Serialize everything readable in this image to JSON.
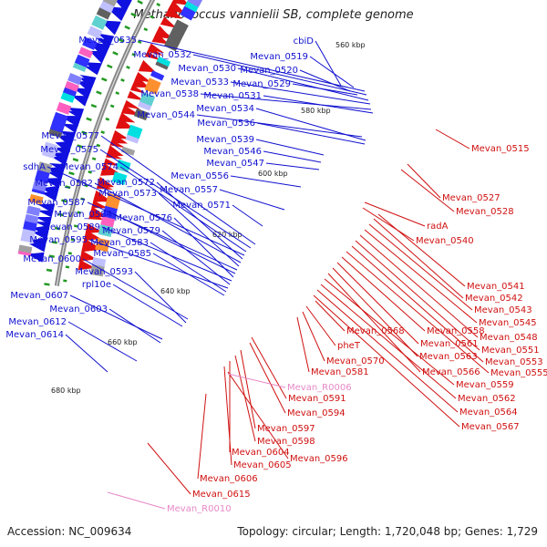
{
  "title": "Methanococcus vannielii SB, complete genome",
  "accession_text": "Accession: NC_009634",
  "topology_text": "Topology: circular; Length: 1,720,048 bp; Genes: 1,729",
  "colors": {
    "left_label": "#1010d0",
    "right_label": "#d01010",
    "rna_label": "#e888c8",
    "tick": "#229922",
    "backbone": "#888888"
  },
  "ticks": [
    "560 kbp",
    "580 kbp",
    "600 kbp",
    "620 kbp",
    "640 kbp",
    "660 kbp",
    "680 kbp"
  ],
  "left_labels": [
    "Mevan_0535",
    "Mevan_0532",
    "Mevan_0530",
    "Mevan_0533",
    "Mevan_0538",
    "Mevan_0531",
    "Mevan_0544",
    "Mevan_0534",
    "Mevan_0536",
    "Mevan_0539",
    "Mevan_0546",
    "Mevan_0547",
    "Mevan_0556",
    "Mevan_0557",
    "Mevan_0571",
    "Mevan_0577",
    "Mevan_0575",
    "Mevan_0574",
    "sdhA",
    "Mevan_0572",
    "Mevan_0582",
    "Mevan_0573",
    "Mevan_0587",
    "Mevan_0584",
    "Mevan_0576",
    "Mevan_0589",
    "Mevan_0579",
    "Mevan_0595",
    "Mevan_0583",
    "Mevan_0585",
    "Mevan_0600",
    "Mevan_0593",
    "rpl10e",
    "Mevan_0607",
    "Mevan_0603",
    "Mevan_0612",
    "Mevan_0614",
    "cbiD",
    "Mevan_0519",
    "Mevan_0520",
    "Mevan_0529"
  ],
  "right_labels": [
    "Mevan_0515",
    "Mevan_0527",
    "Mevan_0528",
    "radA",
    "Mevan_0540",
    "Mevan_0541",
    "Mevan_0542",
    "Mevan_0543",
    "Mevan_0545",
    "Mevan_0548",
    "Mevan_0551",
    "Mevan_0553",
    "Mevan_0555",
    "Mevan_0558",
    "Mevan_0561",
    "Mevan_0563",
    "Mevan_0566",
    "Mevan_0559",
    "Mevan_0562",
    "Mevan_0564",
    "Mevan_0567",
    "Mevan_0568",
    "pheT",
    "Mevan_0570",
    "Mevan_0581",
    "Mevan_0591",
    "Mevan_0594",
    "Mevan_0597",
    "Mevan_0598",
    "Mevan_0604",
    "Mevan_0605",
    "Mevan_0596",
    "Mevan_0606",
    "Mevan_0615"
  ],
  "rna_labels": [
    "Mevan_R0006",
    "Mevan_R0010"
  ]
}
